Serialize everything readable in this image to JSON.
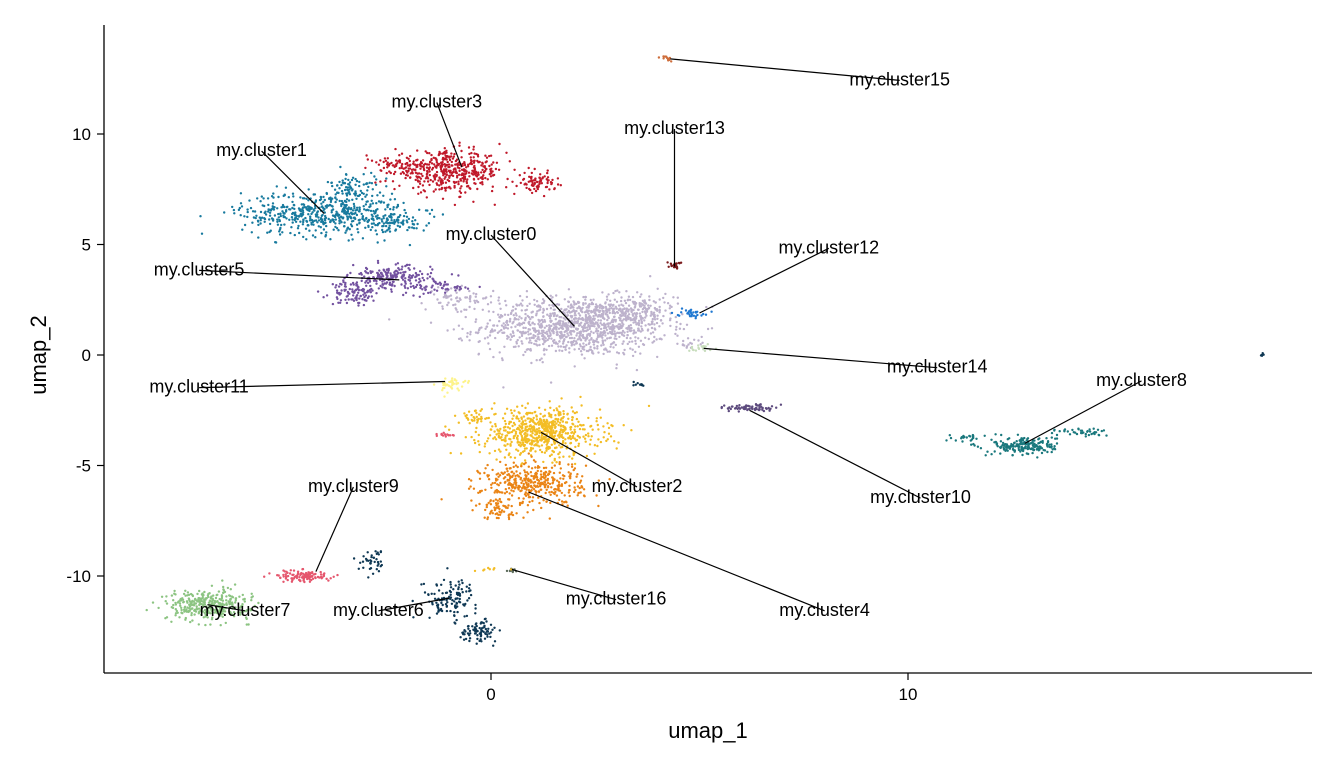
{
  "chart_data": {
    "type": "scatter",
    "xlabel": "umap_1",
    "ylabel": "umap_2",
    "xlim": [
      -9.3,
      19.8
    ],
    "ylim": [
      -14.2,
      14.8
    ],
    "x_ticks": [
      0,
      10
    ],
    "y_ticks": [
      -10,
      -5,
      0,
      5,
      10
    ],
    "x_tick_labels": [
      "0",
      "10"
    ],
    "y_tick_labels": [
      "-10",
      "-5",
      "0",
      "5",
      "10"
    ],
    "grid": false,
    "legend": "none",
    "clusters": [
      {
        "label": "my.cluster0",
        "color": "#bdb2cc",
        "points_estimate": 1400,
        "blobs": [
          [
            2.0,
            1.3,
            2.0,
            1.2,
            1100
          ],
          [
            3.4,
            2.0,
            1.0,
            0.7,
            200
          ],
          [
            -0.8,
            2.6,
            0.8,
            0.4,
            60
          ],
          [
            4.7,
            0.5,
            0.3,
            0.2,
            15
          ]
        ],
        "centroid": [
          2.0,
          1.3
        ],
        "label_pos": [
          0.0,
          5.2
        ]
      },
      {
        "label": "my.cluster1",
        "color": "#187a9e",
        "points_estimate": 700,
        "blobs": [
          [
            -4.0,
            6.4,
            1.8,
            0.9,
            550
          ],
          [
            -3.3,
            7.6,
            0.5,
            0.6,
            80
          ],
          [
            -2.3,
            6.0,
            0.7,
            0.4,
            70
          ]
        ],
        "centroid": [
          -4.0,
          6.4
        ],
        "label_pos": [
          -5.5,
          9.0
        ]
      },
      {
        "label": "my.cluster2",
        "color": "#f3bd25",
        "points_estimate": 700,
        "blobs": [
          [
            1.2,
            -3.5,
            1.3,
            1.0,
            650
          ],
          [
            -0.4,
            -2.8,
            0.4,
            0.3,
            30
          ]
        ],
        "centroid": [
          1.2,
          -3.5
        ],
        "label_pos": [
          3.5,
          -6.2
        ]
      },
      {
        "label": "my.cluster3",
        "color": "#c0192a",
        "points_estimate": 600,
        "blobs": [
          [
            -1.0,
            8.3,
            1.2,
            0.8,
            430
          ],
          [
            1.1,
            7.8,
            0.4,
            0.4,
            80
          ],
          [
            -2.1,
            8.6,
            0.6,
            0.3,
            60
          ]
        ],
        "centroid": [
          -0.7,
          8.5
        ],
        "label_pos": [
          -1.3,
          11.2
        ]
      },
      {
        "label": "my.cluster4",
        "color": "#ea8415",
        "points_estimate": 500,
        "blobs": [
          [
            1.0,
            -5.8,
            1.1,
            0.9,
            400
          ],
          [
            0.2,
            -7.0,
            0.5,
            0.4,
            60
          ]
        ],
        "centroid": [
          0.9,
          -6.2
        ],
        "label_pos": [
          8.0,
          -11.8
        ]
      },
      {
        "label": "my.cluster5",
        "color": "#7352a0",
        "points_estimate": 350,
        "blobs": [
          [
            -2.4,
            3.5,
            0.9,
            0.5,
            200
          ],
          [
            -3.3,
            2.8,
            0.5,
            0.5,
            100
          ],
          [
            -1.2,
            3.0,
            0.7,
            0.3,
            50
          ]
        ],
        "centroid": [
          -2.2,
          3.4
        ],
        "label_pos": [
          -7.0,
          3.6
        ]
      },
      {
        "label": "my.cluster6",
        "color": "#0f3854",
        "points_estimate": 250,
        "blobs": [
          [
            -1.0,
            -11.0,
            0.6,
            0.8,
            120
          ],
          [
            -0.3,
            -12.5,
            0.4,
            0.4,
            80
          ],
          [
            -2.8,
            -9.3,
            0.3,
            0.5,
            40
          ]
        ],
        "centroid": [
          -1.0,
          -11.0
        ],
        "label_pos": [
          -2.7,
          -11.8
        ]
      },
      {
        "label": "my.cluster7",
        "color": "#8cc482",
        "points_estimate": 400,
        "blobs": [
          [
            -6.8,
            -11.3,
            0.9,
            0.6,
            350
          ]
        ],
        "centroid": [
          -6.8,
          -11.3
        ],
        "label_pos": [
          -5.9,
          -11.8
        ]
      },
      {
        "label": "my.cluster8",
        "color": "#1a787d",
        "points_estimate": 250,
        "blobs": [
          [
            12.8,
            -4.1,
            0.7,
            0.4,
            200
          ],
          [
            14.3,
            -3.5,
            0.6,
            0.2,
            40
          ],
          [
            11.4,
            -3.8,
            0.4,
            0.2,
            20
          ]
        ],
        "centroid": [
          12.8,
          -4.0
        ],
        "label_pos": [
          15.6,
          -1.4
        ]
      },
      {
        "label": "my.cluster9",
        "color": "#e5566d",
        "points_estimate": 120,
        "blobs": [
          [
            -4.5,
            -10.0,
            0.6,
            0.25,
            110
          ]
        ],
        "centroid": [
          -4.2,
          -9.8
        ],
        "label_pos": [
          -3.3,
          -6.2
        ]
      },
      {
        "label": "my.cluster10",
        "color": "#5d4b7e",
        "points_estimate": 70,
        "blobs": [
          [
            6.2,
            -2.4,
            0.5,
            0.15,
            70
          ]
        ],
        "centroid": [
          6.2,
          -2.5
        ],
        "label_pos": [
          10.3,
          -6.7
        ]
      },
      {
        "label": "my.cluster11",
        "color": "#fdf38a",
        "points_estimate": 40,
        "blobs": [
          [
            -1.0,
            -1.3,
            0.3,
            0.3,
            40
          ]
        ],
        "centroid": [
          -1.1,
          -1.2
        ],
        "label_pos": [
          -7.0,
          -1.7
        ]
      },
      {
        "label": "my.cluster12",
        "color": "#1f78d1",
        "points_estimate": 30,
        "blobs": [
          [
            4.8,
            1.9,
            0.3,
            0.15,
            30
          ]
        ],
        "centroid": [
          5.0,
          1.9
        ],
        "label_pos": [
          8.1,
          4.6
        ]
      },
      {
        "label": "my.cluster13",
        "color": "#7a1a1c",
        "points_estimate": 25,
        "blobs": [
          [
            4.4,
            4.1,
            0.15,
            0.15,
            25
          ]
        ],
        "centroid": [
          4.4,
          4.0
        ],
        "label_pos": [
          4.4,
          10.0
        ]
      },
      {
        "label": "my.cluster14",
        "color": "#c8ddbd",
        "points_estimate": 20,
        "blobs": [
          [
            5.0,
            0.3,
            0.3,
            0.15,
            20
          ]
        ],
        "centroid": [
          5.1,
          0.3
        ],
        "label_pos": [
          10.7,
          -0.8
        ]
      },
      {
        "label": "my.cluster15",
        "color": "#ce6e3c",
        "points_estimate": 12,
        "blobs": [
          [
            4.2,
            13.4,
            0.15,
            0.1,
            12
          ]
        ],
        "centroid": [
          4.3,
          13.4
        ],
        "label_pos": [
          9.8,
          12.2
        ]
      },
      {
        "label": "my.cluster16",
        "color": "#5b6a5a",
        "points_estimate": 10,
        "blobs": [
          [
            0.5,
            -9.7,
            0.12,
            0.1,
            10
          ]
        ],
        "centroid": [
          0.5,
          -9.7
        ],
        "label_pos": [
          3.0,
          -11.3
        ]
      }
    ],
    "extra_blobs": [
      {
        "color": "#e5566d",
        "blob": [
          -1.1,
          -3.6,
          0.2,
          0.1,
          15
        ]
      },
      {
        "color": "#0f3854",
        "blob": [
          3.6,
          -1.3,
          0.2,
          0.1,
          10
        ]
      },
      {
        "color": "#0f3854",
        "blob": [
          18.5,
          0.0,
          0.05,
          0.05,
          5
        ]
      },
      {
        "color": "#f3bd25",
        "blob": [
          -0.1,
          -9.7,
          0.4,
          0.1,
          8
        ]
      }
    ]
  }
}
